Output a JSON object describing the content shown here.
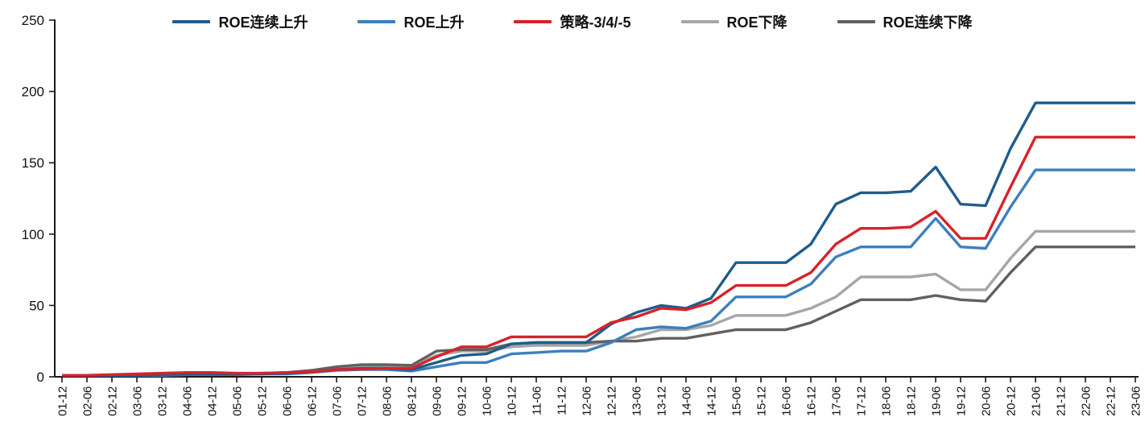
{
  "chart_data": {
    "type": "line",
    "title": "",
    "xlabel": "",
    "ylabel": "",
    "ylim": [
      0,
      250
    ],
    "y_ticks": [
      0,
      50,
      100,
      150,
      200,
      250
    ],
    "grid": false,
    "legend_position": "top-center",
    "axis_color": "#1a1a1a",
    "x_labels": [
      "01-12",
      "02-06",
      "02-12",
      "03-06",
      "03-12",
      "04-06",
      "04-12",
      "05-06",
      "05-12",
      "06-06",
      "06-12",
      "07-06",
      "07-12",
      "08-06",
      "08-12",
      "09-06",
      "09-12",
      "10-06",
      "10-12",
      "11-06",
      "11-12",
      "12-06",
      "12-12",
      "13-06",
      "13-12",
      "14-06",
      "14-12",
      "15-06",
      "15-12",
      "16-06",
      "16-12",
      "17-06",
      "17-12",
      "18-06",
      "18-12",
      "19-06",
      "19-12",
      "20-06",
      "20-12",
      "21-06",
      "21-12",
      "22-06",
      "22-12",
      "23-06"
    ],
    "series": [
      {
        "name": "ROE下降",
        "color": "#a6a6a6",
        "values": [
          1,
          1,
          1,
          1,
          1,
          1.5,
          1.5,
          1.5,
          2,
          2.5,
          3.5,
          5.5,
          7,
          7,
          7,
          15,
          18,
          18,
          21,
          22,
          22,
          22,
          25,
          28,
          33,
          33,
          36,
          43,
          43,
          43,
          48,
          56,
          70,
          70,
          70,
          72,
          61,
          61,
          83,
          102,
          102,
          102,
          102,
          102
        ]
      },
      {
        "name": "ROE连续下降",
        "color": "#606060",
        "values": [
          1,
          1,
          1,
          1,
          1.5,
          2,
          2,
          2,
          2.5,
          3,
          4.5,
          7,
          8.5,
          8.5,
          8,
          18,
          19,
          19,
          23,
          24,
          24,
          24,
          25,
          25,
          27,
          27,
          30,
          33,
          33,
          33,
          38,
          46,
          54,
          54,
          54,
          57,
          54,
          53,
          73,
          91,
          91,
          91,
          91,
          91
        ]
      },
      {
        "name": "ROE上升",
        "color": "#3c7fbe",
        "values": [
          1,
          1,
          1,
          1,
          1,
          1.5,
          1.5,
          1.5,
          2,
          2,
          3,
          4.5,
          5,
          5,
          4,
          7,
          10,
          10,
          16,
          17,
          18,
          18,
          24,
          33,
          35,
          34,
          39,
          56,
          56,
          56,
          65,
          84,
          91,
          91,
          91,
          111,
          91,
          90,
          119,
          145,
          145,
          145,
          145,
          145
        ]
      },
      {
        "name": "ROE连续上升",
        "color": "#1f5c8b",
        "values": [
          1,
          1,
          1,
          1,
          1.5,
          2,
          2,
          2,
          2,
          2.5,
          3.5,
          5,
          6,
          6,
          5,
          10,
          15,
          16,
          23,
          24,
          24,
          24,
          37,
          45,
          50,
          48,
          55,
          80,
          80,
          80,
          93,
          121,
          129,
          129,
          130,
          147,
          121,
          120,
          160,
          192,
          192,
          192,
          192,
          192
        ]
      },
      {
        "name": "策略-3/4/-5",
        "color": "#d7222a",
        "values": [
          1,
          1,
          1.5,
          2,
          2.5,
          3,
          3,
          2.5,
          2.5,
          3,
          3.5,
          5,
          5.5,
          6,
          6,
          14,
          21,
          21,
          28,
          28,
          28,
          28,
          38,
          42,
          48,
          47,
          52,
          64,
          64,
          64,
          73,
          93,
          104,
          104,
          105,
          116,
          97,
          97,
          133,
          168,
          168,
          168,
          168,
          168
        ]
      }
    ],
    "legend_order": [
      "ROE连续上升",
      "ROE上升",
      "策略-3/4/-5",
      "ROE下降",
      "ROE连续下降"
    ]
  }
}
